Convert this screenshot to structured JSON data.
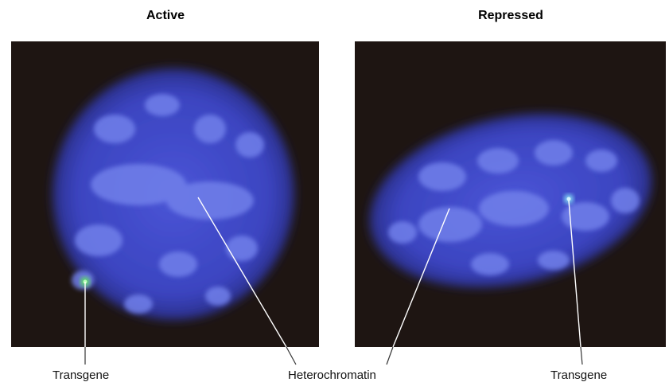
{
  "panels": [
    {
      "title": "Active"
    },
    {
      "title": "Repressed"
    }
  ],
  "labels": {
    "transgene_left": "Transgene",
    "heterochromatin": "Heterochromatin",
    "transgene_right": "Transgene"
  },
  "colors": {
    "background": "#1e1512",
    "nucleus": "#3f48c8",
    "heterochromatin": "#6e7de8",
    "transgene_active": "#5fdc6a",
    "transgene_repressed": "#7fd0f2"
  }
}
